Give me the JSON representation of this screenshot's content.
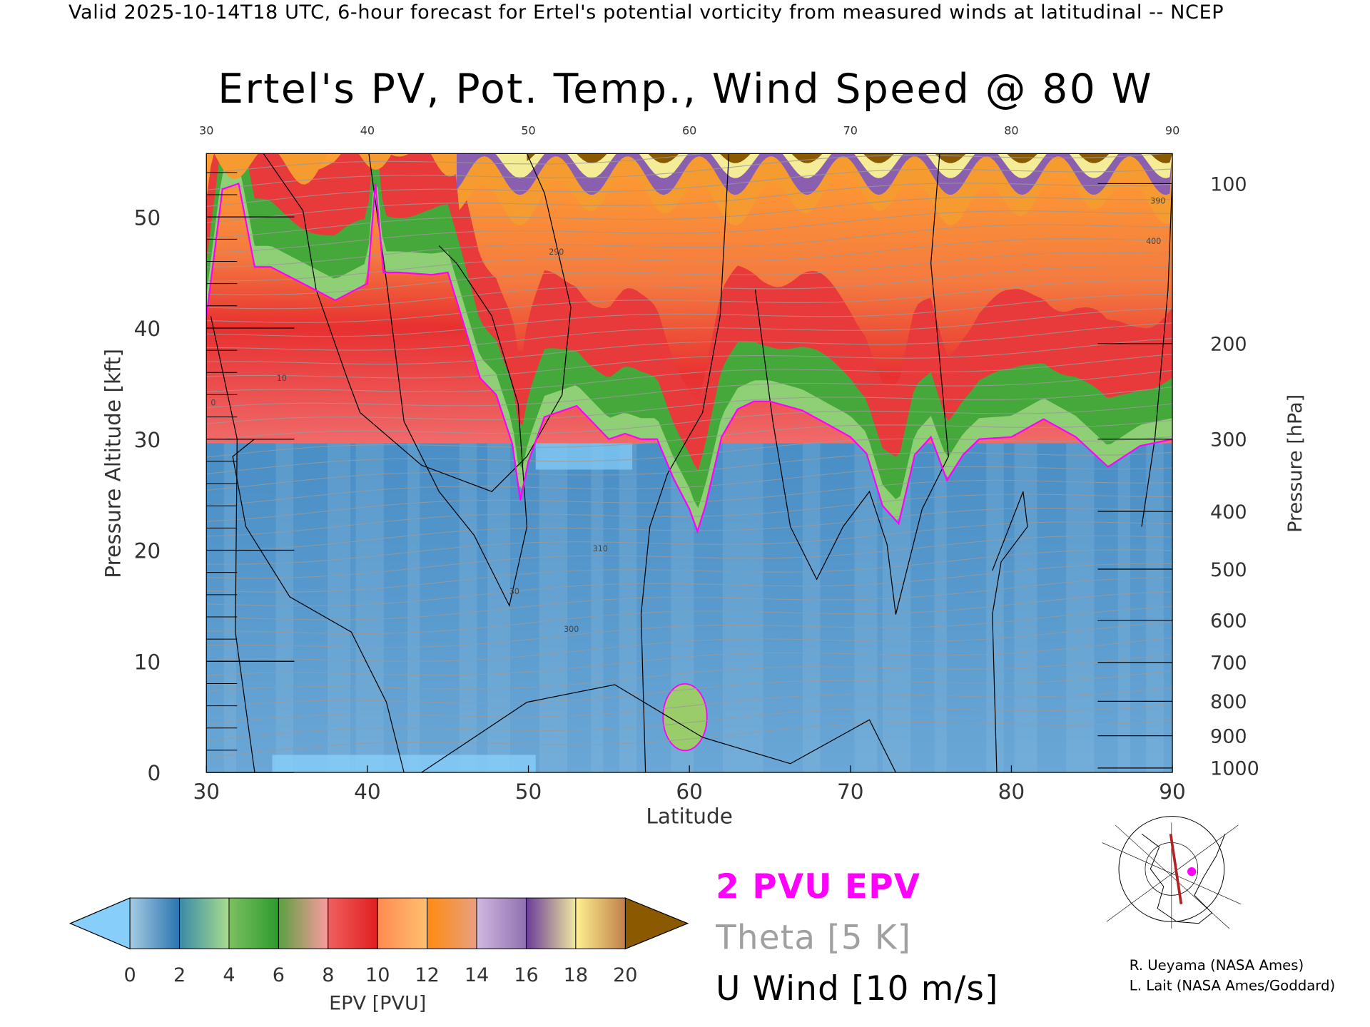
{
  "header": "Valid 2025-10-14T18 UTC, 6-hour forecast for Ertel's potential vorticity from measured winds at latitudinal -- NCEP",
  "chart_data": {
    "type": "heatmap",
    "title": "Ertel's PV, Pot. Temp., Wind Speed @ 80 W",
    "xlabel": "Latitude",
    "ylabel": "Pressure Altitude [kft]",
    "y2label": "Pressure [hPa]",
    "xlim": [
      30,
      90
    ],
    "ylim": [
      0,
      55.7
    ],
    "x_ticks": [
      30,
      40,
      50,
      60,
      70,
      80,
      90
    ],
    "x_tick_labels": [
      "30",
      "40",
      "50",
      "60",
      "70",
      "80",
      "90"
    ],
    "y_ticks": [
      0,
      10,
      20,
      30,
      40,
      50
    ],
    "y_tick_labels": [
      "0",
      "10",
      "20",
      "30",
      "40",
      "50"
    ],
    "pressure_ticks": [
      {
        "label": "100",
        "kft": 53.0
      },
      {
        "label": "200",
        "kft": 38.6
      },
      {
        "label": "300",
        "kft": 30.0
      },
      {
        "label": "400",
        "kft": 23.5
      },
      {
        "label": "500",
        "kft": 18.3
      },
      {
        "label": "600",
        "kft": 13.7
      },
      {
        "label": "700",
        "kft": 9.9
      },
      {
        "label": "800",
        "kft": 6.4
      },
      {
        "label": "900",
        "kft": 3.3
      },
      {
        "label": "1000",
        "kft": 0.4
      }
    ],
    "colorbar": {
      "label": "EPV [PVU]",
      "levels": [
        0,
        2,
        4,
        6,
        8,
        10,
        12,
        14,
        16,
        18,
        20
      ],
      "level_labels": [
        "0",
        "2",
        "4",
        "6",
        "8",
        "10",
        "12",
        "14",
        "16",
        "18",
        "20"
      ],
      "under_color": "#87cefa",
      "over_color": "#8b5a00",
      "segments": [
        [
          "#a6cbe3",
          "#2a74b0"
        ],
        [
          "#3a8aa8",
          "#a9dc8e"
        ],
        [
          "#7cc060",
          "#2e9a2e"
        ],
        [
          "#5aa040",
          "#ff9aa0"
        ],
        [
          "#f06060",
          "#e01e1e"
        ],
        [
          "#ff8a50",
          "#ffc070"
        ],
        [
          "#ff8a10",
          "#e8a080"
        ],
        [
          "#d0b8e0",
          "#9070b0"
        ],
        [
          "#6a3c98",
          "#f0e8a0"
        ],
        [
          "#fff090",
          "#c0804a"
        ]
      ]
    },
    "tropopause_2pvu": [
      [
        30,
        41
      ],
      [
        31,
        52.5
      ],
      [
        32,
        53
      ],
      [
        33,
        45.5
      ],
      [
        34,
        45.5
      ],
      [
        36,
        44
      ],
      [
        38,
        42.5
      ],
      [
        40,
        44
      ],
      [
        40.5,
        53
      ],
      [
        41,
        45
      ],
      [
        42,
        45
      ],
      [
        44,
        44.8
      ],
      [
        45,
        45
      ],
      [
        46,
        40.3
      ],
      [
        47,
        35.5
      ],
      [
        48,
        34
      ],
      [
        49,
        29.6
      ],
      [
        49.5,
        24.5
      ],
      [
        50,
        28
      ],
      [
        51,
        32
      ],
      [
        53,
        33
      ],
      [
        55,
        30
      ],
      [
        56,
        30.5
      ],
      [
        57,
        30
      ],
      [
        58,
        30
      ],
      [
        59,
        26.5
      ],
      [
        60,
        23.7
      ],
      [
        60.5,
        21.7
      ],
      [
        61,
        24
      ],
      [
        62,
        30.2
      ],
      [
        63,
        32.7
      ],
      [
        64,
        33.4
      ],
      [
        65,
        33.4
      ],
      [
        67,
        32.6
      ],
      [
        69,
        31
      ],
      [
        70,
        30.2
      ],
      [
        71,
        28.7
      ],
      [
        72,
        24
      ],
      [
        73,
        22.4
      ],
      [
        74,
        28.6
      ],
      [
        75,
        30.2
      ],
      [
        76,
        26.3
      ],
      [
        77,
        28.6
      ],
      [
        78,
        30
      ],
      [
        80,
        30.2
      ],
      [
        82,
        31.8
      ],
      [
        84,
        30.2
      ],
      [
        86,
        27.5
      ],
      [
        88,
        29.4
      ],
      [
        90,
        30
      ]
    ],
    "legend": [
      {
        "label": "2 PVU EPV",
        "color": "#ff00ff"
      },
      {
        "label": "Theta [5 K]",
        "color": "#a0a0a0"
      },
      {
        "label": "U Wind [10 m/s]",
        "color": "#000000"
      }
    ],
    "contour_labels": [
      "10",
      "30",
      "0",
      "290",
      "300",
      "310",
      "390",
      "400"
    ]
  },
  "credits": [
    "R. Ueyama (NASA Ames)",
    "L. Lait (NASA Ames/Goddard)"
  ]
}
